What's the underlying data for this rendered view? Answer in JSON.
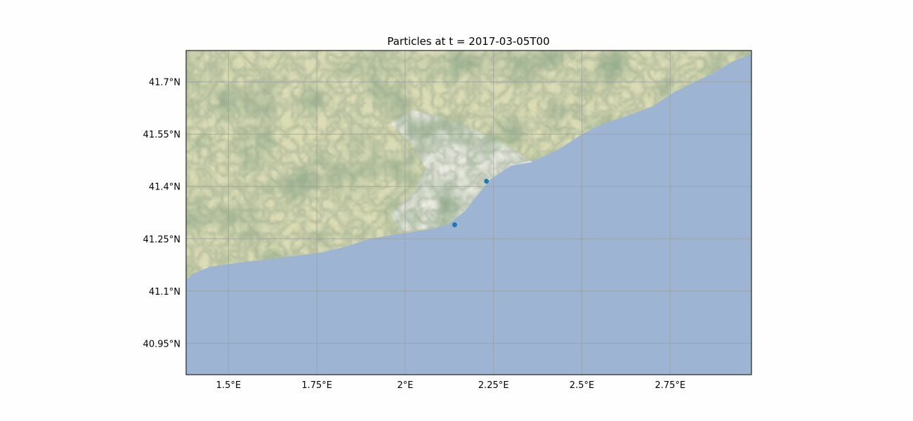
{
  "title": "Particles at t = 2017-03-05T00",
  "colors": {
    "ocean": "#9db5d2",
    "land_base": "#dcdcb4",
    "lowland": "#ebebe9",
    "vegetation_light": "#a8b88c",
    "vegetation_dark": "#5e7a4e",
    "gridline": "#9e9e9e",
    "particle": "#1f77b4"
  },
  "map": {
    "projection": "PlateCarree",
    "basemap": "terrain tiles",
    "extent": {
      "lon_min": 1.38,
      "lon_max": 2.98,
      "lat_min": 40.86,
      "lat_max": 41.79
    },
    "gridlines": true,
    "lon_ticks": [
      1.5,
      1.75,
      2.0,
      2.25,
      2.5,
      2.75
    ],
    "lat_ticks": [
      40.95,
      41.1,
      41.25,
      41.4,
      41.55,
      41.7
    ],
    "lon_tick_labels": [
      "1.5°E",
      "1.75°E",
      "2°E",
      "2.25°E",
      "2.5°E",
      "2.75°E"
    ],
    "lat_tick_labels": [
      "40.95°N",
      "41.1°N",
      "41.25°N",
      "41.4°N",
      "41.55°N",
      "41.7°N"
    ],
    "coastline": [
      [
        1.38,
        41.13
      ],
      [
        1.4,
        41.15
      ],
      [
        1.45,
        41.17
      ],
      [
        1.52,
        41.18
      ],
      [
        1.6,
        41.19
      ],
      [
        1.68,
        41.2
      ],
      [
        1.76,
        41.21
      ],
      [
        1.84,
        41.23
      ],
      [
        1.9,
        41.25
      ],
      [
        1.96,
        41.26
      ],
      [
        2.02,
        41.27
      ],
      [
        2.08,
        41.28
      ],
      [
        2.12,
        41.29
      ],
      [
        2.17,
        41.33
      ],
      [
        2.2,
        41.37
      ],
      [
        2.24,
        41.42
      ],
      [
        2.3,
        41.46
      ],
      [
        2.38,
        41.48
      ],
      [
        2.44,
        41.51
      ],
      [
        2.5,
        41.55
      ],
      [
        2.56,
        41.58
      ],
      [
        2.62,
        41.6
      ],
      [
        2.7,
        41.63
      ],
      [
        2.76,
        41.67
      ],
      [
        2.82,
        41.7
      ],
      [
        2.88,
        41.73
      ],
      [
        2.93,
        41.76
      ],
      [
        2.98,
        41.78
      ]
    ]
  },
  "particles": [
    {
      "lon": 2.23,
      "lat": 41.415
    },
    {
      "lon": 2.14,
      "lat": 41.29
    }
  ]
}
